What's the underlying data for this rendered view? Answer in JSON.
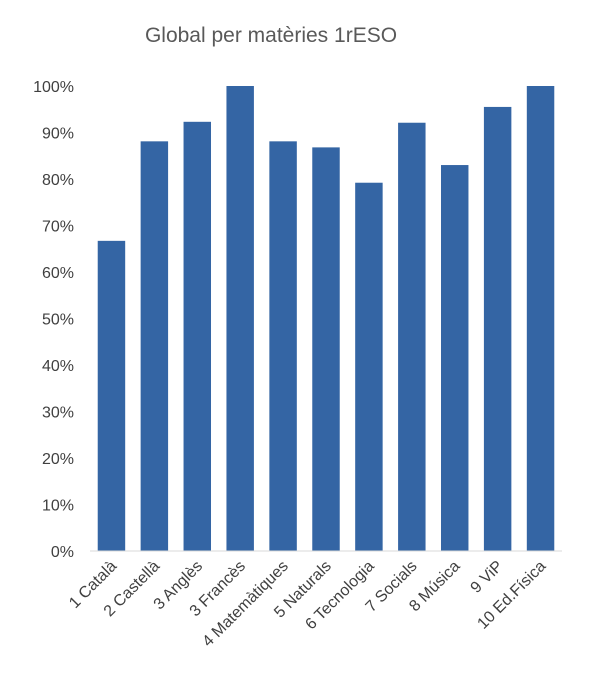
{
  "chart_data": {
    "type": "bar",
    "title": "Global per matèries 1rESO",
    "xlabel": "",
    "ylabel": "",
    "categories": [
      "1 Català",
      "2 Castellà",
      "3 Anglès",
      "3 Francès",
      "4 Matemàtiques",
      "5 Naturals",
      "6 Tecnologia",
      "7 Socials",
      "8 Música",
      "9 ViP",
      "10 Ed.Física"
    ],
    "values": [
      66.7,
      88.1,
      92.3,
      100,
      88.1,
      86.8,
      79.2,
      92.1,
      83.0,
      95.5,
      100
    ],
    "ylim": [
      0,
      100
    ],
    "yticks": [
      "0%",
      "10%",
      "20%",
      "30%",
      "40%",
      "50%",
      "60%",
      "70%",
      "80%",
      "90%",
      "100%"
    ],
    "bar_color": "#3465A4",
    "grid": false,
    "legend": "none"
  }
}
